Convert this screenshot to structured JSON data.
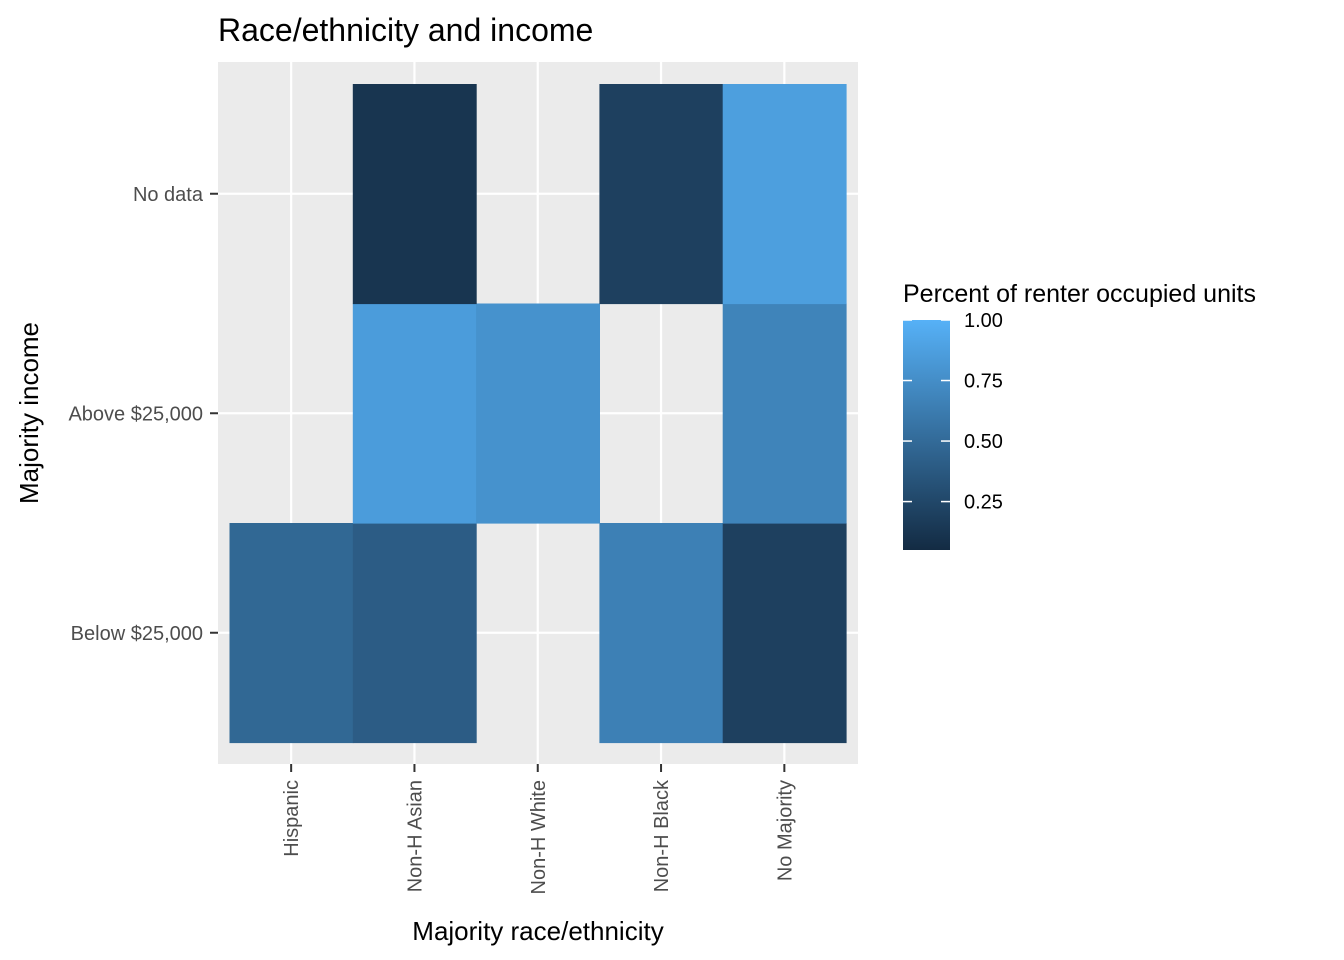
{
  "chart_data": {
    "type": "heatmap",
    "title": "Race/ethnicity and income",
    "xlabel": "Majority race/ethnicity",
    "ylabel": "Majority income",
    "x_categories": [
      "Hispanic",
      "Non-H Asian",
      "Non-H White",
      "Non-H Black",
      "No Majority"
    ],
    "y_categories": [
      "Below $25,000",
      "Above $25,000",
      "No data"
    ],
    "cells": [
      {
        "x": "Hispanic",
        "y": "Below $25,000",
        "value": 0.48
      },
      {
        "x": "Non-H Asian",
        "y": "Below $25,000",
        "value": 0.4
      },
      {
        "x": "Non-H Black",
        "y": "Below $25,000",
        "value": 0.65
      },
      {
        "x": "No Majority",
        "y": "Below $25,000",
        "value": 0.2
      },
      {
        "x": "Non-H Asian",
        "y": "Above $25,000",
        "value": 0.85
      },
      {
        "x": "Non-H White",
        "y": "Above $25,000",
        "value": 0.78
      },
      {
        "x": "No Majority",
        "y": "Above $25,000",
        "value": 0.68
      },
      {
        "x": "Non-H Asian",
        "y": "No data",
        "value": 0.12
      },
      {
        "x": "Non-H Black",
        "y": "No data",
        "value": 0.2
      },
      {
        "x": "No Majority",
        "y": "No data",
        "value": 0.87
      }
    ],
    "legend": {
      "title": "Percent of renter occupied units",
      "position": "right",
      "min": 0.05,
      "max": 1.0,
      "ticks": [
        1.0,
        0.75,
        0.5,
        0.25
      ],
      "tick_labels": [
        "1.00",
        "0.75",
        "0.50",
        "0.25"
      ],
      "low_color": "#132B43",
      "high_color": "#56B1F7"
    },
    "grid": true,
    "panel_background": "#EBEBEB",
    "grid_color": "#FFFFFF"
  }
}
